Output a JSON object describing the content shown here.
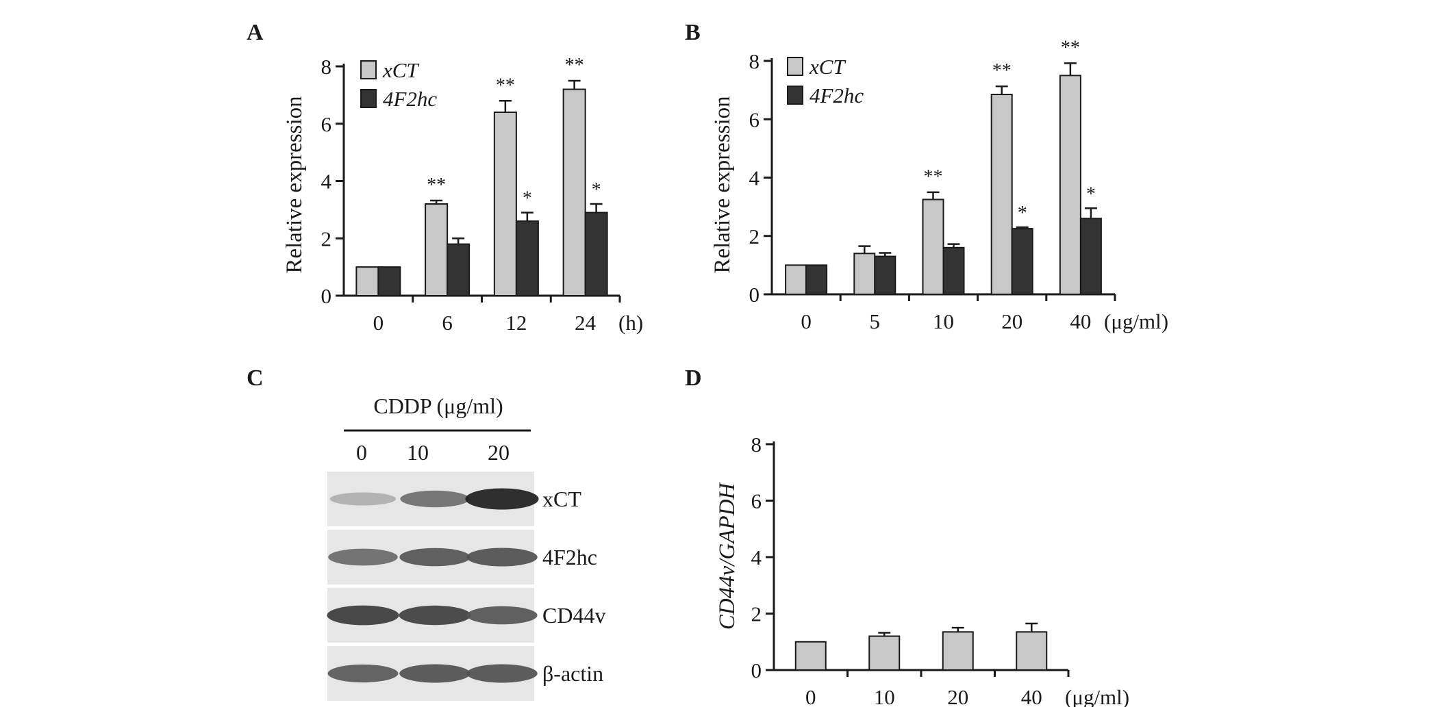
{
  "colors": {
    "light_bar": "#c8c8c8",
    "dark_bar": "#333333",
    "axis": "#1a1a1a"
  },
  "panels": {
    "A": {
      "letter": "A",
      "chart_data": {
        "type": "bar",
        "ylabel": "Relative expression",
        "unit": "(h)",
        "ylim": [
          0,
          8
        ],
        "yticks": [
          "0",
          "2",
          "4",
          "6",
          "8"
        ],
        "categories": [
          "0",
          "6",
          "12",
          "24"
        ],
        "legend": "top-left",
        "series": [
          {
            "name": "xCT",
            "values": [
              1.0,
              3.2,
              6.4,
              7.2
            ],
            "errors": [
              0,
              0.12,
              0.4,
              0.3
            ],
            "sig": [
              "",
              "**",
              "**",
              "**"
            ]
          },
          {
            "name": "4F2hc",
            "values": [
              1.0,
              1.8,
              2.6,
              2.9
            ],
            "errors": [
              0,
              0.2,
              0.3,
              0.3
            ],
            "sig": [
              "",
              "",
              "*",
              "*"
            ]
          }
        ]
      }
    },
    "B": {
      "letter": "B",
      "chart_data": {
        "type": "bar",
        "ylabel": "Relative expression",
        "unit": "(μg/ml)",
        "ylim": [
          0,
          8
        ],
        "yticks": [
          "0",
          "2",
          "4",
          "6",
          "8"
        ],
        "categories": [
          "0",
          "5",
          "10",
          "20",
          "40"
        ],
        "legend": "top-left",
        "series": [
          {
            "name": "xCT",
            "values": [
              1.0,
              1.4,
              3.25,
              6.85,
              7.5
            ],
            "errors": [
              0,
              0.25,
              0.25,
              0.28,
              0.42
            ],
            "sig": [
              "",
              "",
              "**",
              "**",
              "**"
            ]
          },
          {
            "name": "4F2hc",
            "values": [
              1.0,
              1.3,
              1.6,
              2.25,
              2.6
            ],
            "errors": [
              0,
              0.12,
              0.12,
              0.05,
              0.35
            ],
            "sig": [
              "",
              "",
              "",
              "*",
              "*"
            ]
          }
        ]
      }
    },
    "C": {
      "letter": "C",
      "treatment": "CDDP (μg/ml)",
      "lanes": [
        "0",
        "10",
        "20"
      ],
      "bands": [
        {
          "label": "xCT",
          "intensity": [
            0.28,
            0.58,
            0.95
          ]
        },
        {
          "label": "4F2hc",
          "intensity": [
            0.6,
            0.7,
            0.72
          ]
        },
        {
          "label": "CD44v",
          "intensity": [
            0.82,
            0.8,
            0.7
          ]
        },
        {
          "label": "β-actin",
          "intensity": [
            0.68,
            0.72,
            0.72
          ]
        }
      ]
    },
    "D": {
      "letter": "D",
      "chart_data": {
        "type": "bar",
        "ylabel": "CD44v/GAPDH",
        "unit": "(μg/ml)",
        "ylim": [
          0,
          8
        ],
        "yticks": [
          "0",
          "2",
          "4",
          "6",
          "8"
        ],
        "categories": [
          "0",
          "10",
          "20",
          "40"
        ],
        "series": [
          {
            "values": [
              1.0,
              1.2,
              1.35,
              1.35
            ],
            "errors": [
              0,
              0.12,
              0.15,
              0.3
            ]
          }
        ]
      }
    }
  }
}
